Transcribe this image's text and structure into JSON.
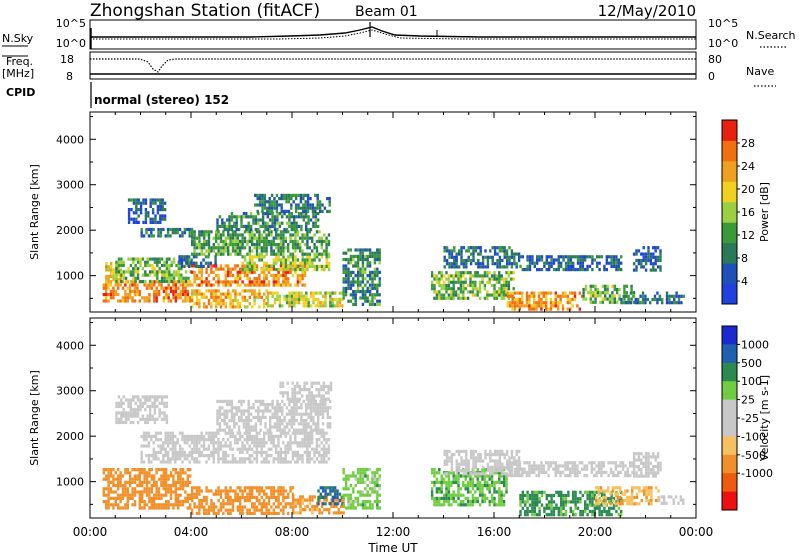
{
  "header": {
    "title": "Zhongshan Station (fitACF)",
    "beam": "Beam 01",
    "date": "12/May/2010"
  },
  "strip_nsky": {
    "left_label": "N.Sky",
    "left_ticks": [
      "10^5",
      "10^0"
    ],
    "right_label": "N.Search",
    "right_ticks": [
      "10^5",
      "10^0"
    ]
  },
  "strip_freq": {
    "left_label_1": "Freq.",
    "left_label_2": "[MHz]",
    "left_ticks": [
      "18",
      "8"
    ],
    "right_label": "Nave",
    "right_ticks": [
      "80",
      "0"
    ]
  },
  "strip_cpid": {
    "label": "CPID",
    "text": "normal (stereo) 152"
  },
  "time_axis": {
    "label": "Time UT",
    "ticks": [
      "00:00",
      "04:00",
      "08:00",
      "12:00",
      "16:00",
      "20:00",
      "00:00"
    ]
  },
  "colors": {
    "power_scale": [
      "#2040e0",
      "#1e50b8",
      "#2a7a5a",
      "#3a9a3a",
      "#9ad040",
      "#f0d020",
      "#f0a020",
      "#f07010",
      "#e82010"
    ],
    "velocity_scale": [
      "#ee1010",
      "#f05a10",
      "#f0902a",
      "#f4c060",
      "#c8c8c8",
      "#c8c8c8",
      "#70cc40",
      "#2a8a50",
      "#2060b0",
      "#1a2ad0"
    ]
  },
  "chart_data": [
    {
      "type": "heatmap",
      "title": "",
      "ylabel": "Slant Range [km]",
      "xlabel": "Time UT",
      "x_ticks": [
        "00:00",
        "04:00",
        "08:00",
        "12:00",
        "16:00",
        "20:00",
        "00:00"
      ],
      "y_ticks": [
        "1000",
        "2000",
        "3000",
        "4000"
      ],
      "ylim": [
        200,
        4600
      ],
      "colorbar": {
        "label": "Power [dB]",
        "ticks": [
          "4",
          "8",
          "12",
          "16",
          "20",
          "24",
          "28"
        ],
        "range": [
          0,
          32
        ]
      },
      "regions": [
        {
          "t": [
            0.6,
            1.2
          ],
          "r": [
            900,
            1300
          ],
          "v": 20
        },
        {
          "t": [
            0.5,
            2.5
          ],
          "r": [
            450,
            900
          ],
          "v": 24
        },
        {
          "t": [
            2.5,
            4.0
          ],
          "r": [
            450,
            900
          ],
          "v": 26
        },
        {
          "t": [
            4.0,
            7.0
          ],
          "r": [
            300,
            700
          ],
          "v": 22
        },
        {
          "t": [
            7.0,
            10.0
          ],
          "r": [
            300,
            650
          ],
          "v": 18
        },
        {
          "t": [
            1.0,
            4.0
          ],
          "r": [
            900,
            1400
          ],
          "v": 14
        },
        {
          "t": [
            4.0,
            8.5
          ],
          "r": [
            800,
            1250
          ],
          "v": 25
        },
        {
          "t": [
            6.0,
            9.5
          ],
          "r": [
            1150,
            1450
          ],
          "v": 16
        },
        {
          "t": [
            4.0,
            9.5
          ],
          "r": [
            1500,
            2000
          ],
          "v": 12
        },
        {
          "t": [
            5.0,
            9.0
          ],
          "r": [
            2000,
            2400
          ],
          "v": 10
        },
        {
          "t": [
            6.5,
            9.5
          ],
          "r": [
            2400,
            2800
          ],
          "v": 9
        },
        {
          "t": [
            2.0,
            4.0
          ],
          "r": [
            1850,
            2050
          ],
          "v": 8
        },
        {
          "t": [
            1.5,
            3.0
          ],
          "r": [
            2200,
            2700
          ],
          "v": 6
        },
        {
          "t": [
            3.5,
            5.0
          ],
          "r": [
            1200,
            1450
          ],
          "v": 7
        },
        {
          "t": [
            10.0,
            11.5
          ],
          "r": [
            400,
            1600
          ],
          "v": 10
        },
        {
          "t": [
            13.5,
            16.8
          ],
          "r": [
            500,
            1100
          ],
          "v": 14
        },
        {
          "t": [
            14.0,
            17.0
          ],
          "r": [
            1200,
            1650
          ],
          "v": 8
        },
        {
          "t": [
            16.5,
            19.5
          ],
          "r": [
            250,
            650
          ],
          "v": 24
        },
        {
          "t": [
            17.0,
            21.0
          ],
          "r": [
            1100,
            1450
          ],
          "v": 7
        },
        {
          "t": [
            19.5,
            21.5
          ],
          "r": [
            400,
            800
          ],
          "v": 14
        },
        {
          "t": [
            21.5,
            22.6
          ],
          "r": [
            1100,
            1650
          ],
          "v": 6
        },
        {
          "t": [
            21.0,
            23.5
          ],
          "r": [
            400,
            650
          ],
          "v": 8
        }
      ]
    },
    {
      "type": "heatmap",
      "title": "",
      "ylabel": "Slant Range [km]",
      "xlabel": "Time UT",
      "x_ticks": [
        "00:00",
        "04:00",
        "08:00",
        "12:00",
        "16:00",
        "20:00",
        "00:00"
      ],
      "y_ticks": [
        "1000",
        "2000",
        "3000",
        "4000"
      ],
      "ylim": [
        200,
        4600
      ],
      "colorbar": {
        "label": "Velocity [m s-1]",
        "ticks": [
          "1000",
          "500",
          "100",
          "25",
          "-25",
          "-100",
          "-500",
          "-1000"
        ]
      },
      "regions": [
        {
          "t": [
            0.5,
            4.0
          ],
          "r": [
            450,
            1300
          ],
          "v": -300
        },
        {
          "t": [
            4.0,
            8.0
          ],
          "r": [
            300,
            900
          ],
          "v": -250
        },
        {
          "t": [
            8.0,
            10.0
          ],
          "r": [
            300,
            700
          ],
          "v": -150
        },
        {
          "t": [
            2.0,
            9.5
          ],
          "r": [
            1400,
            2100
          ],
          "v": 0
        },
        {
          "t": [
            5.0,
            9.5
          ],
          "r": [
            2100,
            2800
          ],
          "v": 0
        },
        {
          "t": [
            7.5,
            9.5
          ],
          "r": [
            2800,
            3200
          ],
          "v": 0
        },
        {
          "t": [
            1.0,
            3.0
          ],
          "r": [
            2300,
            2900
          ],
          "v": 0
        },
        {
          "t": [
            9.0,
            10.0
          ],
          "r": [
            500,
            900
          ],
          "v": 600
        },
        {
          "t": [
            10.0,
            11.5
          ],
          "r": [
            400,
            1300
          ],
          "v": 60
        },
        {
          "t": [
            13.5,
            16.5
          ],
          "r": [
            500,
            1300
          ],
          "v": 80
        },
        {
          "t": [
            14.0,
            17.0
          ],
          "r": [
            1200,
            1700
          ],
          "v": 0
        },
        {
          "t": [
            16.5,
            21.5
          ],
          "r": [
            1100,
            1450
          ],
          "v": 0
        },
        {
          "t": [
            17.0,
            21.0
          ],
          "r": [
            300,
            800
          ],
          "v": 150
        },
        {
          "t": [
            20.0,
            22.5
          ],
          "r": [
            500,
            900
          ],
          "v": -80
        },
        {
          "t": [
            21.5,
            22.6
          ],
          "r": [
            1100,
            1650
          ],
          "v": 0
        },
        {
          "t": [
            22.5,
            23.5
          ],
          "r": [
            500,
            700
          ],
          "v": 0
        }
      ]
    }
  ]
}
